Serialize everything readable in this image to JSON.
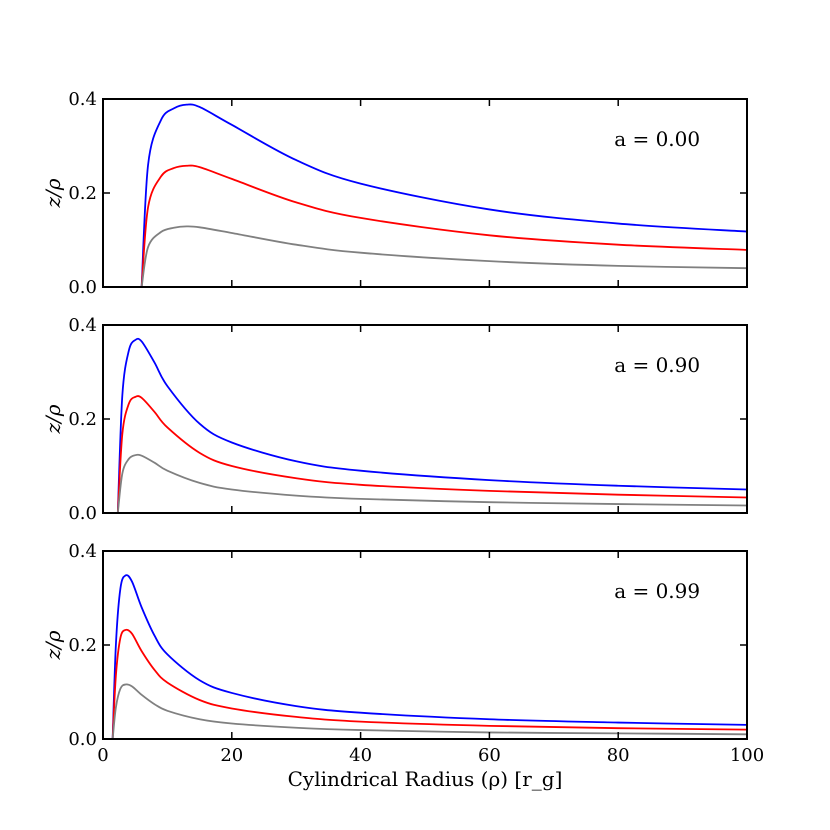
{
  "chart_data": [
    {
      "type": "line",
      "panel": "top",
      "annotation": "a = 0.00",
      "ylabel": "z/ρ",
      "xlim": [
        0,
        100
      ],
      "ylim": [
        0,
        0.4
      ],
      "yticks": [
        "0.0",
        "0.2",
        "0.4"
      ],
      "series": [
        {
          "name": "upper",
          "color": "#0000ff",
          "x": [
            6.0,
            7,
            9,
            11,
            13,
            15,
            20,
            30,
            40,
            60,
            80,
            100
          ],
          "y": [
            0.0,
            0.26,
            0.355,
            0.38,
            0.388,
            0.383,
            0.345,
            0.27,
            0.22,
            0.165,
            0.135,
            0.118
          ]
        },
        {
          "name": "middle",
          "color": "#ff0000",
          "x": [
            6.0,
            7,
            9,
            11,
            13,
            15,
            20,
            30,
            40,
            60,
            80,
            100
          ],
          "y": [
            0.0,
            0.17,
            0.235,
            0.253,
            0.258,
            0.255,
            0.23,
            0.18,
            0.147,
            0.11,
            0.09,
            0.079
          ]
        },
        {
          "name": "lower",
          "color": "#808080",
          "x": [
            6.0,
            7,
            9,
            11,
            13,
            15,
            20,
            30,
            40,
            60,
            80,
            100
          ],
          "y": [
            0.0,
            0.085,
            0.117,
            0.126,
            0.129,
            0.127,
            0.115,
            0.09,
            0.073,
            0.055,
            0.045,
            0.04
          ]
        }
      ]
    },
    {
      "type": "line",
      "panel": "middle",
      "annotation": "a = 0.90",
      "ylabel": "z/ρ",
      "xlim": [
        0,
        100
      ],
      "ylim": [
        0,
        0.4
      ],
      "yticks": [
        "0.0",
        "0.2",
        "0.4"
      ],
      "series": [
        {
          "name": "upper",
          "color": "#0000ff",
          "x": [
            2.3,
            3,
            4,
            5,
            6,
            8,
            10,
            15,
            20,
            30,
            40,
            60,
            80,
            100
          ],
          "y": [
            0.0,
            0.25,
            0.345,
            0.368,
            0.365,
            0.32,
            0.27,
            0.19,
            0.15,
            0.11,
            0.09,
            0.07,
            0.058,
            0.05
          ]
        },
        {
          "name": "middle",
          "color": "#ff0000",
          "x": [
            2.3,
            3,
            4,
            5,
            6,
            8,
            10,
            15,
            20,
            30,
            40,
            60,
            80,
            100
          ],
          "y": [
            0.0,
            0.168,
            0.232,
            0.247,
            0.245,
            0.215,
            0.182,
            0.128,
            0.1,
            0.074,
            0.06,
            0.047,
            0.039,
            0.033
          ]
        },
        {
          "name": "lower",
          "color": "#808080",
          "x": [
            2.3,
            3,
            4,
            5,
            6,
            8,
            10,
            15,
            20,
            30,
            40,
            60,
            80,
            100
          ],
          "y": [
            0.0,
            0.084,
            0.115,
            0.123,
            0.122,
            0.107,
            0.09,
            0.064,
            0.05,
            0.037,
            0.03,
            0.023,
            0.019,
            0.016
          ]
        }
      ]
    },
    {
      "type": "line",
      "panel": "bottom",
      "annotation": "a = 0.99",
      "ylabel": "z/ρ",
      "xlabel": "Cylindrical Radius (ρ) [r_g]",
      "xlim": [
        0,
        100
      ],
      "ylim": [
        0,
        0.4
      ],
      "xticks": [
        "0",
        "20",
        "40",
        "60",
        "80",
        "100"
      ],
      "yticks": [
        "0.0",
        "0.2",
        "0.4"
      ],
      "series": [
        {
          "name": "upper",
          "color": "#0000ff",
          "x": [
            1.5,
            2,
            2.7,
            3.5,
            4.5,
            6,
            8,
            10,
            15,
            20,
            30,
            40,
            60,
            80,
            100
          ],
          "y": [
            0.0,
            0.2,
            0.32,
            0.348,
            0.335,
            0.28,
            0.22,
            0.18,
            0.125,
            0.098,
            0.07,
            0.056,
            0.042,
            0.035,
            0.03
          ]
        },
        {
          "name": "middle",
          "color": "#ff0000",
          "x": [
            1.5,
            2,
            2.7,
            3.5,
            4.5,
            6,
            8,
            10,
            15,
            20,
            30,
            40,
            60,
            80,
            100
          ],
          "y": [
            0.0,
            0.135,
            0.215,
            0.232,
            0.224,
            0.187,
            0.147,
            0.12,
            0.083,
            0.065,
            0.047,
            0.037,
            0.028,
            0.023,
            0.02
          ]
        },
        {
          "name": "lower",
          "color": "#808080",
          "x": [
            1.5,
            2,
            2.7,
            3.5,
            4.5,
            6,
            8,
            10,
            15,
            20,
            30,
            40,
            60,
            80,
            100
          ],
          "y": [
            0.0,
            0.067,
            0.107,
            0.116,
            0.112,
            0.094,
            0.074,
            0.06,
            0.042,
            0.033,
            0.024,
            0.019,
            0.014,
            0.012,
            0.01
          ]
        }
      ]
    }
  ]
}
